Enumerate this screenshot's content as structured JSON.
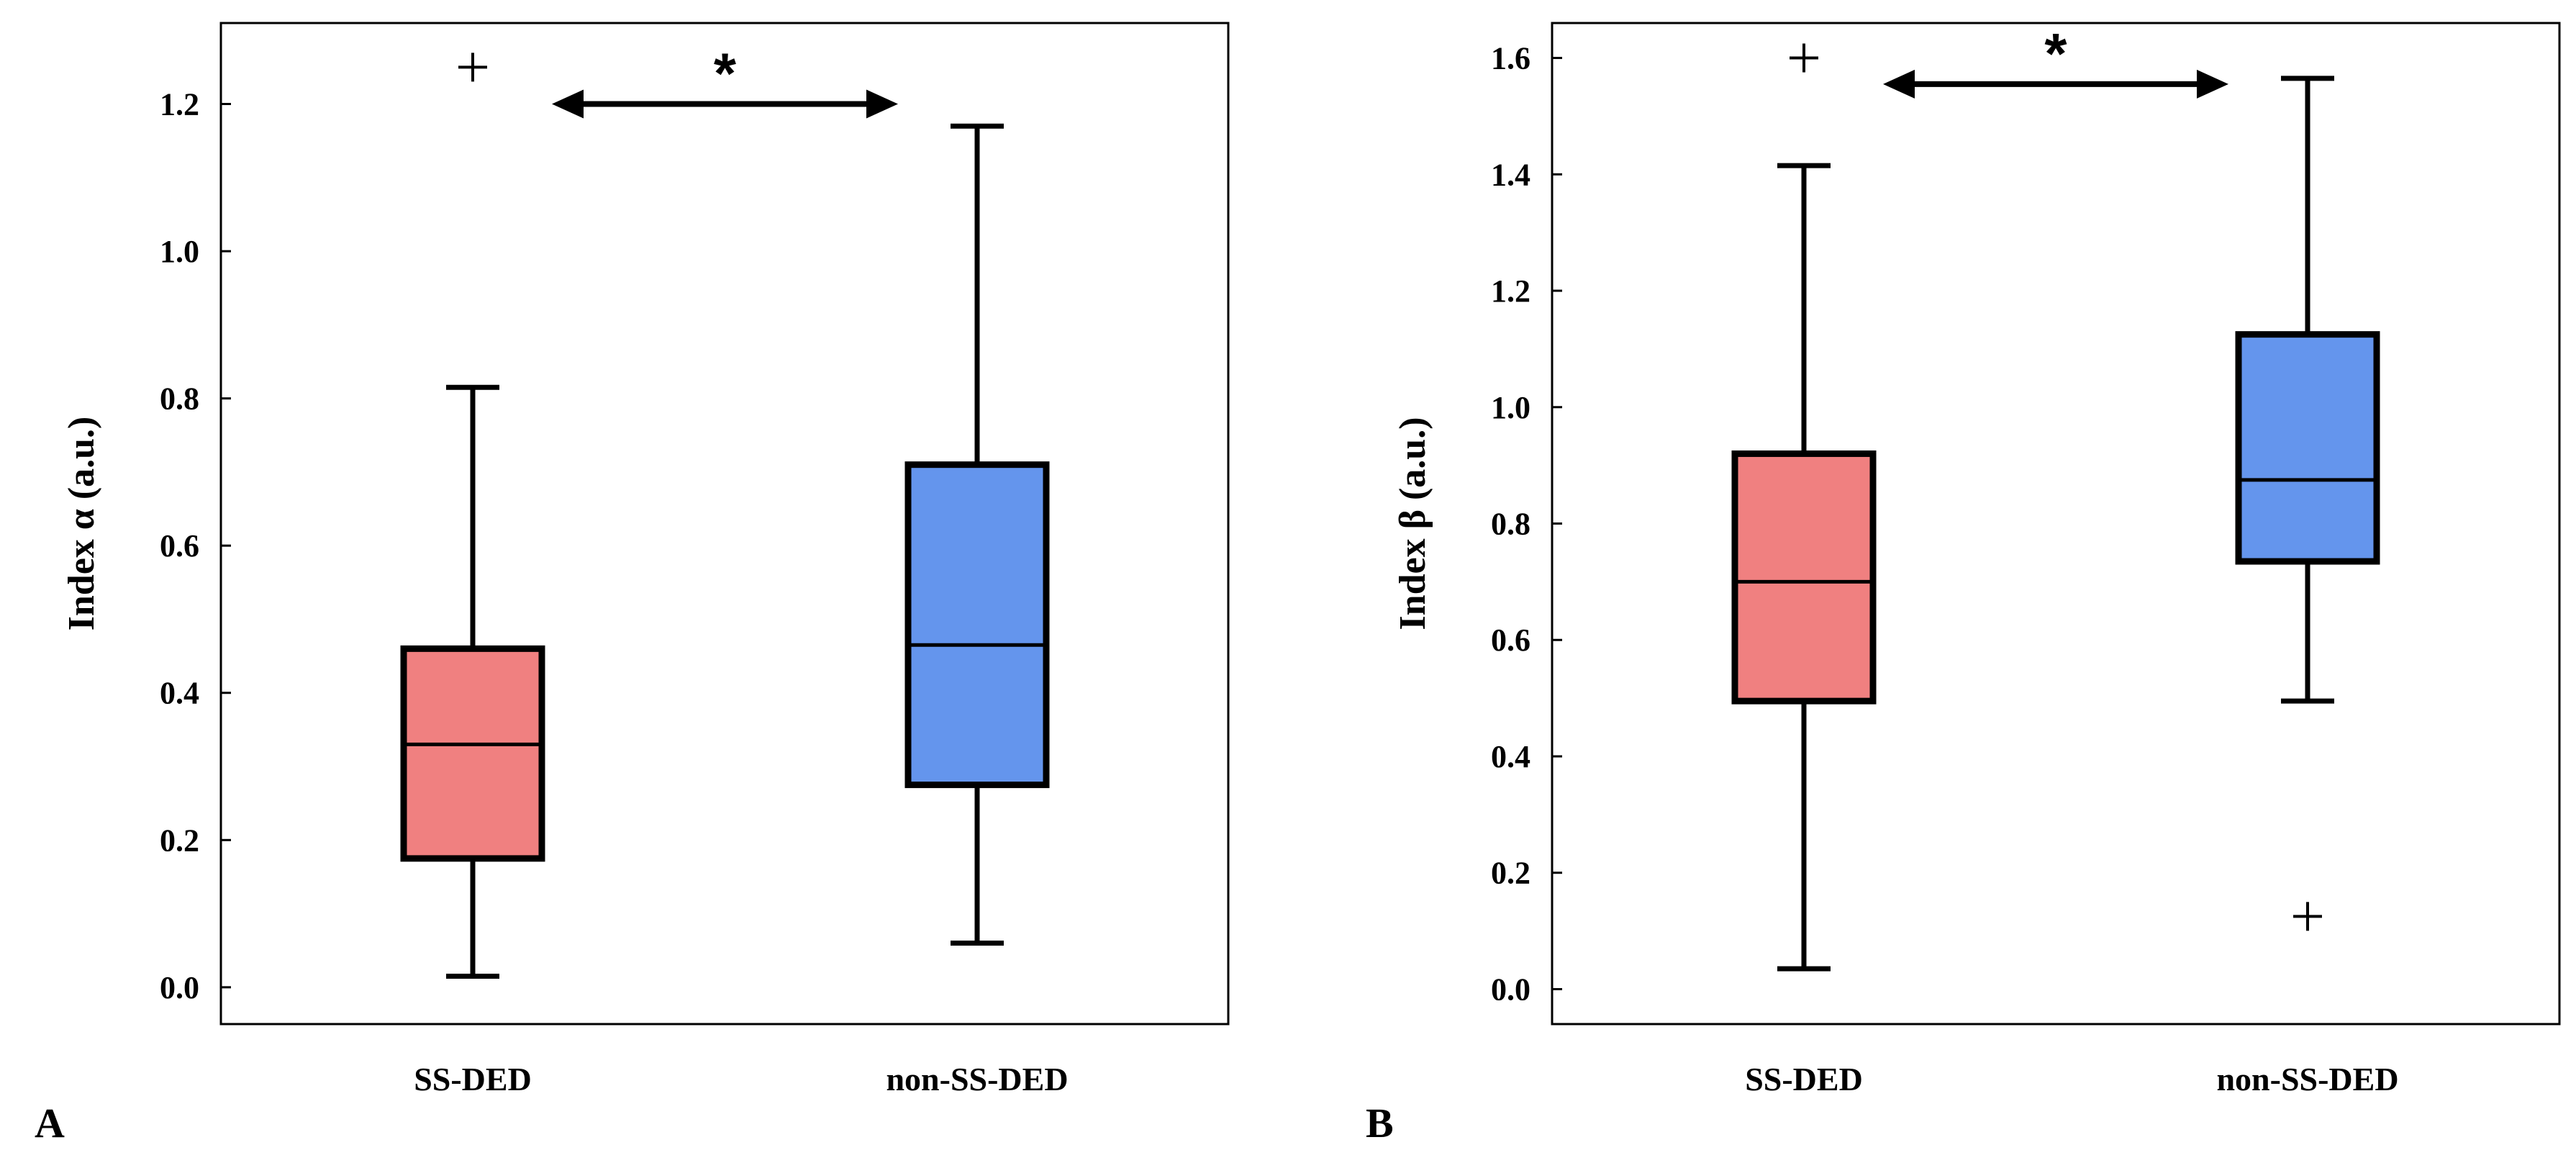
{
  "chart_data": [
    {
      "type": "box",
      "panel_label": "A",
      "ylabel": "Index α (a.u.)",
      "ylim": [
        -0.05,
        1.31
      ],
      "yticks": [
        0.0,
        0.2,
        0.4,
        0.6,
        0.8,
        1.0,
        1.2
      ],
      "categories": [
        "SS-DED",
        "non-SS-DED"
      ],
      "boxes": [
        {
          "category": "SS-DED",
          "min": 0.015,
          "q1": 0.175,
          "median": 0.33,
          "q3": 0.46,
          "max": 0.815,
          "outliers": [
            1.25
          ],
          "color": "#F08080"
        },
        {
          "category": "non-SS-DED",
          "min": 0.06,
          "q1": 0.275,
          "median": 0.465,
          "q3": 0.71,
          "max": 1.17,
          "outliers": [],
          "color": "#6495ED"
        }
      ],
      "significance": {
        "label": "*",
        "y": 1.2
      }
    },
    {
      "type": "box",
      "panel_label": "B",
      "ylabel": "Index β (a.u.)",
      "ylim": [
        -0.06,
        1.66
      ],
      "yticks": [
        0.0,
        0.2,
        0.4,
        0.6,
        0.8,
        1.0,
        1.2,
        1.4,
        1.6
      ],
      "categories": [
        "SS-DED",
        "non-SS-DED"
      ],
      "boxes": [
        {
          "category": "SS-DED",
          "min": 0.035,
          "q1": 0.495,
          "median": 0.7,
          "q3": 0.92,
          "max": 1.415,
          "outliers": [
            1.6
          ],
          "color": "#F08080"
        },
        {
          "category": "non-SS-DED",
          "min": 0.495,
          "q1": 0.735,
          "median": 0.875,
          "q3": 1.125,
          "max": 1.565,
          "outliers": [
            0.125
          ],
          "color": "#6495ED"
        }
      ],
      "significance": {
        "label": "*",
        "y": 1.555
      }
    }
  ]
}
